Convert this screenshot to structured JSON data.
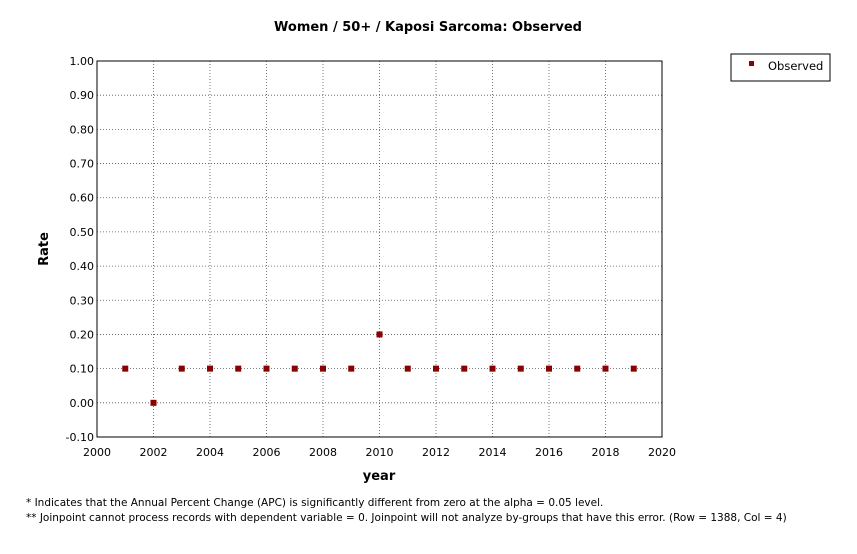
{
  "chart_data": {
    "type": "scatter",
    "title": "Women / 50+ / Kaposi Sarcoma: Observed",
    "xlabel": "year",
    "ylabel": "Rate",
    "xlim": [
      2000,
      2020
    ],
    "ylim": [
      -0.1,
      1.0
    ],
    "xticks": [
      "2000",
      "2002",
      "2004",
      "2006",
      "2008",
      "2010",
      "2012",
      "2014",
      "2016",
      "2018",
      "2020"
    ],
    "yticks": [
      "-0.10",
      "0.00",
      "0.10",
      "0.20",
      "0.30",
      "0.40",
      "0.50",
      "0.60",
      "0.70",
      "0.80",
      "0.90",
      "1.00"
    ],
    "grid": true,
    "legend_position": "top-right",
    "series": [
      {
        "name": "Observed",
        "color": "#8b0000",
        "marker": "square",
        "x": [
          2001,
          2002,
          2003,
          2004,
          2005,
          2006,
          2007,
          2008,
          2009,
          2010,
          2011,
          2012,
          2013,
          2014,
          2015,
          2016,
          2017,
          2018,
          2019
        ],
        "y": [
          0.1,
          0.0,
          0.1,
          0.1,
          0.1,
          0.1,
          0.1,
          0.1,
          0.1,
          0.2,
          0.1,
          0.1,
          0.1,
          0.1,
          0.1,
          0.1,
          0.1,
          0.1,
          0.1
        ]
      }
    ]
  },
  "footnotes": [
    "* Indicates that the Annual Percent Change (APC) is significantly different from zero at the alpha = 0.05 level.",
    "**  Joinpoint cannot process records with dependent variable = 0. Joinpoint will not analyze by-groups that have this error. (Row = 1388, Col = 4)"
  ]
}
